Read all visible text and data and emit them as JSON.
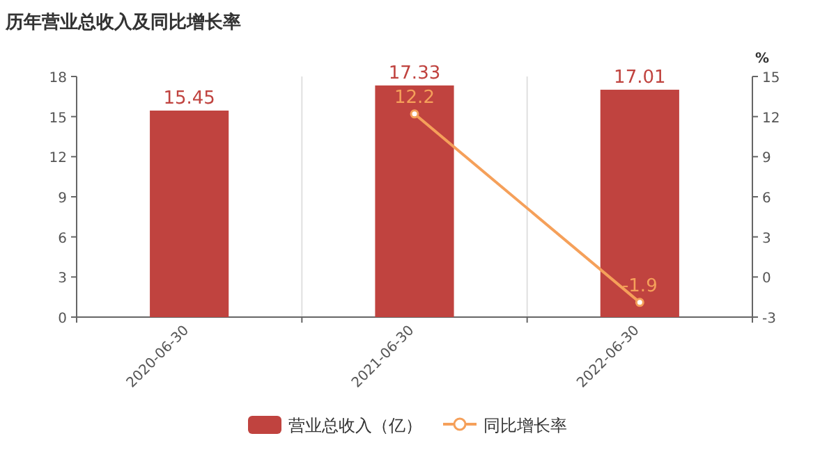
{
  "chart_data": {
    "type": "bar",
    "title": "历年营业总收入及同比增长率",
    "categories": [
      "2020-06-30",
      "2021-06-30",
      "2022-06-30"
    ],
    "series": [
      {
        "name": "营业总收入（亿）",
        "color": "#c0433f",
        "values": [
          15.45,
          17.33,
          17.01
        ]
      },
      {
        "name": "同比增长率",
        "type": "line",
        "axis": "y2",
        "color": "#f5a05a",
        "values": [
          null,
          12.2,
          -1.9
        ]
      }
    ],
    "ylim": [
      0,
      18
    ],
    "yticks": [
      0,
      3,
      6,
      9,
      12,
      15,
      18
    ],
    "y2lim": [
      -3,
      15
    ],
    "y2ticks": [
      -3,
      0,
      3,
      6,
      9,
      12,
      15
    ],
    "y2label": "%",
    "grid": "x",
    "legend": "bottom",
    "marker": "circle",
    "data_labels": true
  }
}
